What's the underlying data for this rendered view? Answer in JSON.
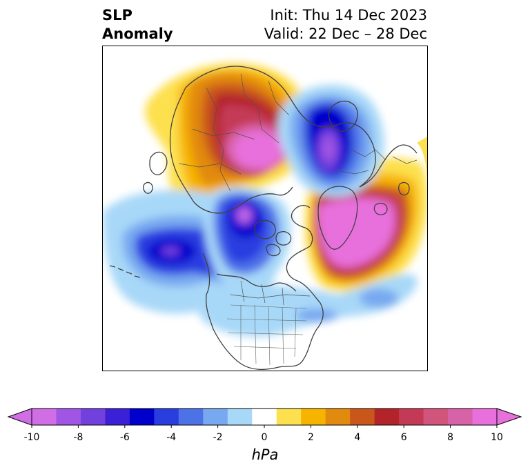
{
  "title": {
    "left_line1": "SLP",
    "left_line2": "Anomaly",
    "init": "Init: Thu 14 Dec 2023",
    "valid": "Valid: 22 Dec – 28 Dec"
  },
  "colorbar": {
    "units": "hPa",
    "min": -10,
    "max": 10,
    "extend": "both",
    "tick_labels": [
      "-10",
      "-8",
      "-6",
      "-4",
      "-2",
      "0",
      "2",
      "4",
      "6",
      "8",
      "10"
    ],
    "colors": [
      "#d16ee6",
      "#a155e4",
      "#7140dd",
      "#3b20d7",
      "#0000cc",
      "#2a3ee0",
      "#4d72e8",
      "#78a9f0",
      "#a8d8f8",
      "#ffffff",
      "#fde04e",
      "#f6b400",
      "#e28a10",
      "#c9571a",
      "#b3242a",
      "#c43a56",
      "#d0547c",
      "#d862a8",
      "#e870dc"
    ],
    "low_extend_color": "#d16ee6",
    "high_extend_color": "#e870dc"
  },
  "map": {
    "projection": "north-polar-stereographic",
    "features": [
      "coastlines",
      "country-borders",
      "us-state-borders"
    ]
  }
}
